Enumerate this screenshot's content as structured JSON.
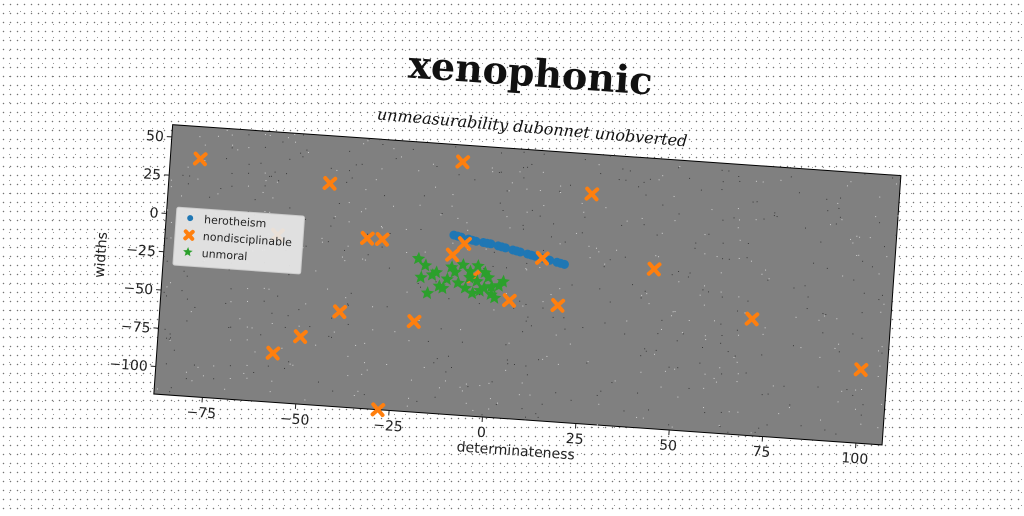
{
  "chart_data": {
    "type": "scatter",
    "title": "xenophonic",
    "subtitle": "unmeasurability dubonnet unobverted",
    "xlabel": "determinateness",
    "ylabel": "widths",
    "xlim": [
      -88,
      107
    ],
    "ylim": [
      -118,
      58
    ],
    "xticks": [
      "−75",
      "−50",
      "−25",
      "0",
      "25",
      "50",
      "75",
      "100"
    ],
    "xtick_values": [
      -75,
      -50,
      -25,
      0,
      25,
      50,
      75,
      100
    ],
    "yticks": [
      "50",
      "25",
      "0",
      "−25",
      "−50",
      "−75",
      "−100"
    ],
    "ytick_values": [
      50,
      25,
      0,
      -25,
      -50,
      -75,
      -100
    ],
    "legend_position": "center-left",
    "grid": false,
    "plot_background": "#808080",
    "series": [
      {
        "name": "herotheism",
        "marker": "circle",
        "color": "#1f77b4",
        "x": [
          -11,
          -9,
          -7,
          -5,
          -3,
          -1,
          1,
          3,
          5,
          7,
          9,
          11,
          13,
          15,
          17,
          19,
          -10,
          -6,
          -2,
          2,
          6,
          10,
          14,
          18
        ],
        "y": [
          -1,
          -2,
          -3,
          -4,
          -4.5,
          -5,
          -6,
          -7,
          -8,
          -9,
          -10,
          -11,
          -12,
          -13,
          -14,
          -15,
          -1.5,
          -3.5,
          -4.8,
          -6.5,
          -8.5,
          -10.5,
          -12.5,
          -14.5
        ]
      },
      {
        "name": "nondisciplinable",
        "marker": "x",
        "color": "#ff7f0e",
        "x": [
          -80,
          -45,
          -10,
          25,
          -58,
          -34,
          -30,
          -8,
          -11,
          13,
          43,
          -5,
          5,
          18,
          -40,
          -20,
          70,
          -50,
          -57,
          100,
          -28
        ],
        "y": [
          37,
          27,
          47,
          32,
          -9,
          -7,
          -7,
          -6,
          -14,
          -12,
          -14,
          -27,
          -41,
          -42,
          -56,
          -59,
          -42,
          -74,
          -86,
          -70,
          -118
        ]
      },
      {
        "name": "unmoral",
        "marker": "star",
        "color": "#2ca02c",
        "x": [
          -20,
          -18,
          -16,
          -14,
          -12,
          -10,
          -8,
          -6,
          -4,
          -2,
          0,
          2,
          -17,
          -13,
          -9,
          -5,
          -1,
          3,
          -19,
          -15,
          -11,
          -7,
          -3,
          1,
          -6,
          -4,
          -2,
          0
        ],
        "y": [
          -18,
          -22,
          -28,
          -35,
          -30,
          -25,
          -20,
          -24,
          -30,
          -34,
          -38,
          -32,
          -40,
          -36,
          -32,
          -38,
          -27,
          -29,
          -30,
          -26,
          -22,
          -35,
          -36,
          -40,
          -28,
          -20,
          -24,
          -33
        ]
      }
    ]
  }
}
